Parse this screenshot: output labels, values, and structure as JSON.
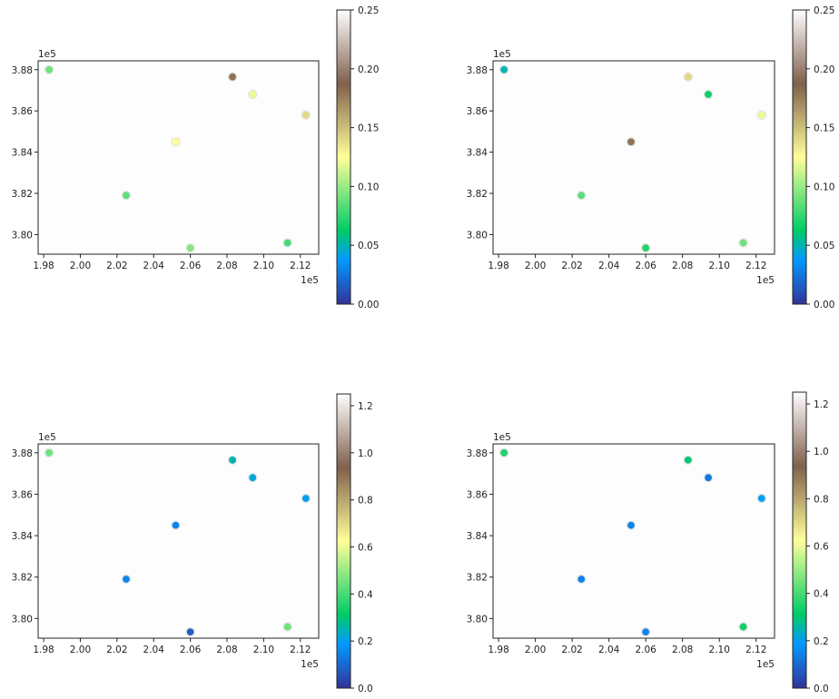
{
  "chart_data": [
    {
      "type": "scatter",
      "x_offset_label": "1e5",
      "y_offset_label": "1e5",
      "xlim": [
        1.977,
        2.13
      ],
      "ylim": [
        3.7905,
        3.8843
      ],
      "x_ticks": [
        "1.98",
        "2.00",
        "2.02",
        "2.04",
        "2.06",
        "2.08",
        "2.10",
        "2.12"
      ],
      "y_ticks": [
        "3.80",
        "3.82",
        "3.84",
        "3.86",
        "3.88"
      ],
      "colorbar_range": [
        0,
        0.25
      ],
      "colorbar_ticks": [
        "0.00",
        "0.05",
        "0.10",
        "0.15",
        "0.20",
        "0.25"
      ],
      "colormap": "terrain",
      "points": [
        {
          "x": 1.983,
          "y": 3.88,
          "c": 0.09
        },
        {
          "x": 2.025,
          "y": 3.819,
          "c": 0.085
        },
        {
          "x": 2.052,
          "y": 3.845,
          "c": 0.125
        },
        {
          "x": 2.06,
          "y": 3.7935,
          "c": 0.095
        },
        {
          "x": 2.083,
          "y": 3.8765,
          "c": 0.18
        },
        {
          "x": 2.094,
          "y": 3.868,
          "c": 0.12
        },
        {
          "x": 2.113,
          "y": 3.796,
          "c": 0.08
        },
        {
          "x": 2.123,
          "y": 3.858,
          "c": 0.14
        }
      ]
    },
    {
      "type": "scatter",
      "x_offset_label": "1e5",
      "y_offset_label": "1e5",
      "xlim": [
        1.977,
        2.13
      ],
      "ylim": [
        3.7905,
        3.8843
      ],
      "x_ticks": [
        "1.98",
        "2.00",
        "2.02",
        "2.04",
        "2.06",
        "2.08",
        "2.10",
        "2.12"
      ],
      "y_ticks": [
        "3.80",
        "3.82",
        "3.84",
        "3.86",
        "3.88"
      ],
      "colorbar_range": [
        0,
        0.25
      ],
      "colorbar_ticks": [
        "0.00",
        "0.05",
        "0.10",
        "0.15",
        "0.20",
        "0.25"
      ],
      "colormap": "terrain",
      "points": [
        {
          "x": 1.983,
          "y": 3.88,
          "c": 0.05
        },
        {
          "x": 2.025,
          "y": 3.819,
          "c": 0.085
        },
        {
          "x": 2.052,
          "y": 3.845,
          "c": 0.18
        },
        {
          "x": 2.06,
          "y": 3.7935,
          "c": 0.07
        },
        {
          "x": 2.083,
          "y": 3.8765,
          "c": 0.14
        },
        {
          "x": 2.094,
          "y": 3.868,
          "c": 0.065
        },
        {
          "x": 2.113,
          "y": 3.796,
          "c": 0.09
        },
        {
          "x": 2.123,
          "y": 3.858,
          "c": 0.12
        }
      ]
    },
    {
      "type": "scatter",
      "x_offset_label": "1e5",
      "y_offset_label": "1e5",
      "xlim": [
        1.977,
        2.13
      ],
      "ylim": [
        3.7905,
        3.8843
      ],
      "x_ticks": [
        "1.98",
        "2.00",
        "2.02",
        "2.04",
        "2.06",
        "2.08",
        "2.10",
        "2.12"
      ],
      "y_ticks": [
        "3.80",
        "3.82",
        "3.84",
        "3.86",
        "3.88"
      ],
      "colorbar_range": [
        0,
        1.25
      ],
      "colorbar_ticks": [
        "0.0",
        "0.2",
        "0.4",
        "0.6",
        "0.8",
        "1.0",
        "1.2"
      ],
      "colormap": "terrain",
      "points": [
        {
          "x": 1.983,
          "y": 3.88,
          "c": 0.45
        },
        {
          "x": 2.025,
          "y": 3.819,
          "c": 0.15
        },
        {
          "x": 2.052,
          "y": 3.845,
          "c": 0.15
        },
        {
          "x": 2.06,
          "y": 3.7935,
          "c": 0.08
        },
        {
          "x": 2.083,
          "y": 3.8765,
          "c": 0.25
        },
        {
          "x": 2.094,
          "y": 3.868,
          "c": 0.22
        },
        {
          "x": 2.113,
          "y": 3.796,
          "c": 0.45
        },
        {
          "x": 2.123,
          "y": 3.858,
          "c": 0.2
        }
      ]
    },
    {
      "type": "scatter",
      "x_offset_label": "1e5",
      "y_offset_label": "1e5",
      "xlim": [
        1.977,
        2.13
      ],
      "ylim": [
        3.7905,
        3.8843
      ],
      "x_ticks": [
        "1.98",
        "2.00",
        "2.02",
        "2.04",
        "2.06",
        "2.08",
        "2.10",
        "2.12"
      ],
      "y_ticks": [
        "3.80",
        "3.82",
        "3.84",
        "3.86",
        "3.88"
      ],
      "colorbar_range": [
        0,
        1.25
      ],
      "colorbar_ticks": [
        "0.0",
        "0.2",
        "0.4",
        "0.6",
        "0.8",
        "1.0",
        "1.2"
      ],
      "colormap": "terrain",
      "points": [
        {
          "x": 1.983,
          "y": 3.88,
          "c": 0.35
        },
        {
          "x": 2.025,
          "y": 3.819,
          "c": 0.15
        },
        {
          "x": 2.052,
          "y": 3.845,
          "c": 0.15
        },
        {
          "x": 2.06,
          "y": 3.7935,
          "c": 0.15
        },
        {
          "x": 2.083,
          "y": 3.8765,
          "c": 0.3
        },
        {
          "x": 2.094,
          "y": 3.868,
          "c": 0.13
        },
        {
          "x": 2.113,
          "y": 3.796,
          "c": 0.33
        },
        {
          "x": 2.123,
          "y": 3.858,
          "c": 0.2
        }
      ]
    }
  ]
}
